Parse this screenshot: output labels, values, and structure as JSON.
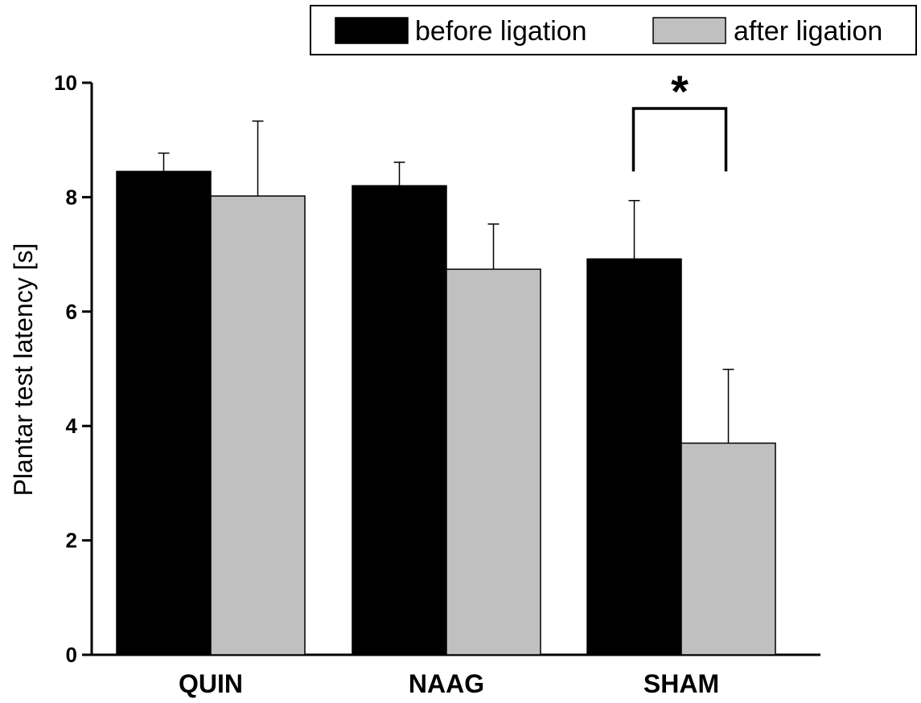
{
  "chart_data": {
    "type": "bar",
    "categories": [
      "QUIN",
      "NAAG",
      "SHAM"
    ],
    "series": [
      {
        "name": "before ligation",
        "color": "#000000",
        "values": [
          8.45,
          8.2,
          6.92
        ],
        "errors": [
          0.32,
          0.41,
          1.02
        ]
      },
      {
        "name": "after ligation",
        "color": "#c0c0c0",
        "values": [
          8.02,
          6.74,
          3.7
        ],
        "errors": [
          1.31,
          0.79,
          1.29
        ]
      }
    ],
    "ylabel": "Plantar test latency [s]",
    "xlabel": "",
    "ylim": [
      0,
      10
    ],
    "yticks": [
      0,
      2,
      4,
      6,
      8,
      10
    ],
    "legend_position": "top-right",
    "grid": false,
    "annotations": [
      {
        "text": "*",
        "category": "SHAM",
        "between": [
          "before ligation",
          "after ligation"
        ],
        "y": 9.55
      }
    ]
  }
}
